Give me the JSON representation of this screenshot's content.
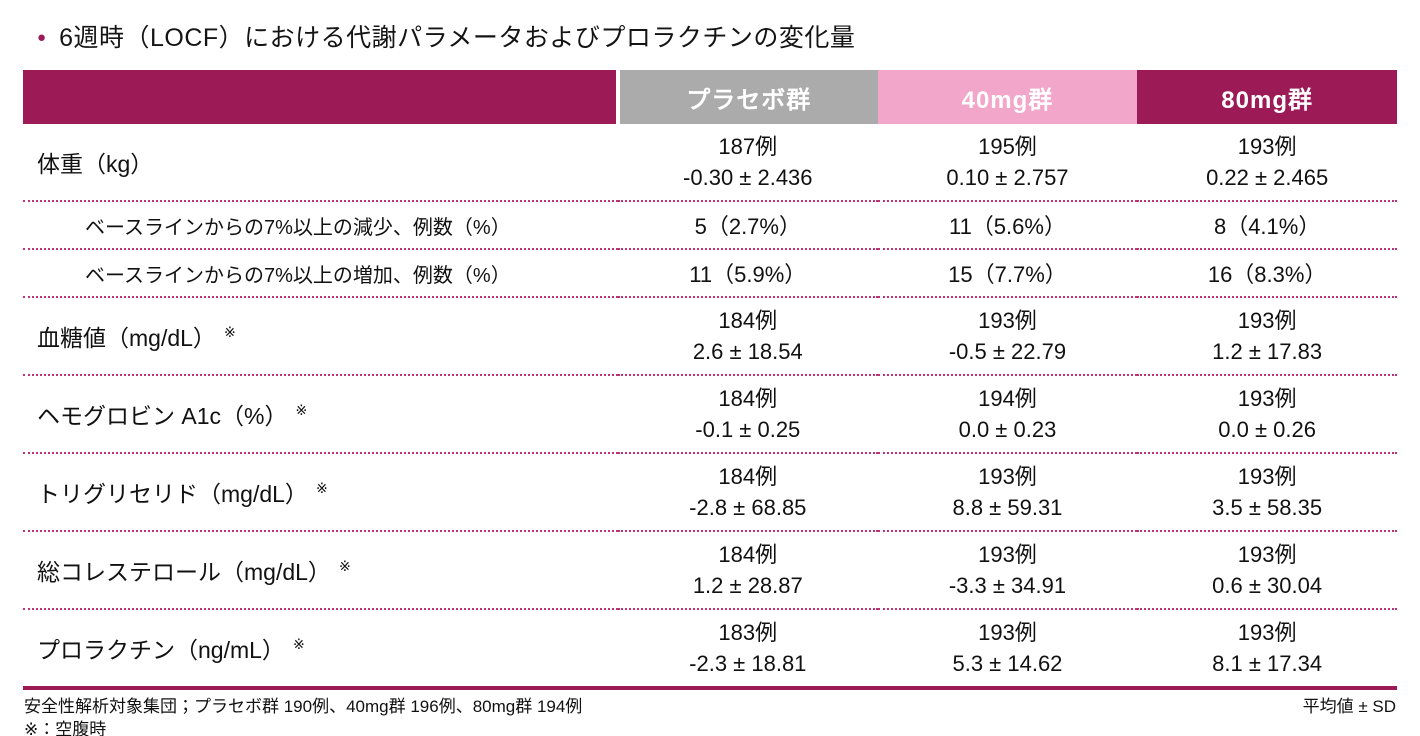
{
  "title": {
    "bullet": "●",
    "text": "6週時（LOCF）における代謝パラメータおよびプロラクチンの変化量"
  },
  "colors": {
    "accent_magenta": "#9c1b57",
    "header_gray": "#ababab",
    "header_pink": "#f2a6c9",
    "dotted_line": "#be3375"
  },
  "table": {
    "columns": [
      "プラセボ群",
      "40mg群",
      "80mg群"
    ],
    "rows": [
      {
        "label": "体重（kg）",
        "sup": "",
        "cells": [
          {
            "n": "187例",
            "value": "-0.30 ± 2.436"
          },
          {
            "n": "195例",
            "value": "0.10 ± 2.757"
          },
          {
            "n": "193例",
            "value": "0.22 ± 2.465"
          }
        ]
      },
      {
        "label": "ベースラインからの7%以上の減少、例数（%）",
        "sup": "",
        "cells": [
          "5（2.7%）",
          "11（5.6%）",
          "8（4.1%）"
        ]
      },
      {
        "label": "ベースラインからの7%以上の増加、例数（%）",
        "sup": "",
        "cells": [
          "11（5.9%）",
          "15（7.7%）",
          "16（8.3%）"
        ]
      },
      {
        "label": "血糖値（mg/dL）",
        "sup": "※",
        "cells": [
          {
            "n": "184例",
            "value": "2.6 ± 18.54"
          },
          {
            "n": "193例",
            "value": "-0.5 ± 22.79"
          },
          {
            "n": "193例",
            "value": "1.2 ± 17.83"
          }
        ]
      },
      {
        "label": "ヘモグロビン A1c（%）",
        "sup": "※",
        "cells": [
          {
            "n": "184例",
            "value": "-0.1 ± 0.25"
          },
          {
            "n": "194例",
            "value": "0.0 ± 0.23"
          },
          {
            "n": "193例",
            "value": "0.0 ± 0.26"
          }
        ]
      },
      {
        "label": "トリグリセリド（mg/dL）",
        "sup": "※",
        "cells": [
          {
            "n": "184例",
            "value": "-2.8 ± 68.85"
          },
          {
            "n": "193例",
            "value": "8.8 ± 59.31"
          },
          {
            "n": "193例",
            "value": "3.5 ± 58.35"
          }
        ]
      },
      {
        "label": "総コレステロール（mg/dL）",
        "sup": "※",
        "cells": [
          {
            "n": "184例",
            "value": "1.2 ± 28.87"
          },
          {
            "n": "193例",
            "value": "-3.3 ± 34.91"
          },
          {
            "n": "193例",
            "value": "0.6 ± 30.04"
          }
        ]
      },
      {
        "label": "プロラクチン（ng/mL）",
        "sup": "※",
        "cells": [
          {
            "n": "183例",
            "value": "-2.3 ± 18.81"
          },
          {
            "n": "193例",
            "value": "5.3 ± 14.62"
          },
          {
            "n": "193例",
            "value": "8.1 ± 17.34"
          }
        ]
      }
    ]
  },
  "footer": {
    "line1": "安全性解析対象集団；プラセボ群 190例、40mg群 196例、80mg群 194例",
    "line2": "※：空腹時",
    "right": "平均値 ± SD"
  }
}
